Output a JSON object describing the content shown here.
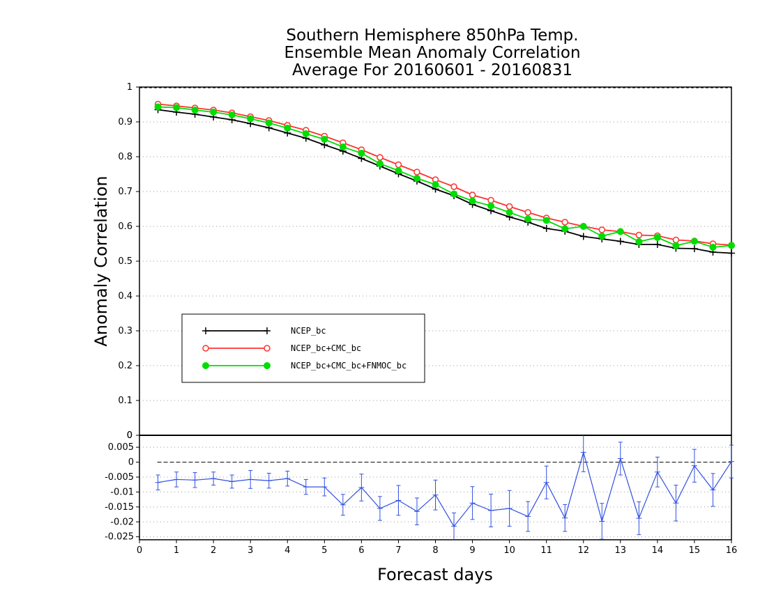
{
  "chart_data": [
    {
      "type": "line",
      "title_lines": [
        "Southern Hemisphere 850hPa Temp.",
        "Ensemble Mean Anomaly Correlation",
        "Average For 20160601 - 20160831"
      ],
      "xlabel": "Forecast days",
      "ylabel": "Anomaly Correlation",
      "xlim": [
        0,
        16
      ],
      "ylim": [
        0,
        1
      ],
      "xticks": [
        "0",
        "1",
        "2",
        "3",
        "4",
        "5",
        "6",
        "7",
        "8",
        "9",
        "10",
        "11",
        "12",
        "13",
        "14",
        "15",
        "16"
      ],
      "yticks": [
        "0",
        "0.1",
        "0.2",
        "0.3",
        "0.4",
        "0.5",
        "0.6",
        "0.7",
        "0.8",
        "0.9",
        "1"
      ],
      "grid": true,
      "legend_placement": "lower-left",
      "x": [
        0.5,
        1,
        1.5,
        2,
        2.5,
        3,
        3.5,
        4,
        4.5,
        5,
        5.5,
        6,
        6.5,
        7,
        7.5,
        8,
        8.5,
        9,
        9.5,
        10,
        10.5,
        11,
        11.5,
        12,
        12.5,
        13,
        13.5,
        14,
        14.5,
        15,
        15.5,
        16
      ],
      "series": [
        {
          "name": "NCEP_bc",
          "color": "#000000",
          "marker": "plus",
          "values": [
            0.935,
            0.928,
            0.922,
            0.914,
            0.906,
            0.895,
            0.883,
            0.868,
            0.853,
            0.834,
            0.816,
            0.795,
            0.773,
            0.751,
            0.73,
            0.707,
            0.688,
            0.663,
            0.645,
            0.627,
            0.612,
            0.594,
            0.586,
            0.571,
            0.564,
            0.557,
            0.548,
            0.548,
            0.537,
            0.536,
            0.526,
            0.523
          ]
        },
        {
          "name": "NCEP_bc+CMC_bc",
          "color": "#ff3030",
          "marker": "open-circle",
          "values": [
            0.951,
            0.946,
            0.94,
            0.934,
            0.926,
            0.915,
            0.904,
            0.89,
            0.876,
            0.859,
            0.84,
            0.82,
            0.798,
            0.777,
            0.756,
            0.734,
            0.714,
            0.69,
            0.675,
            0.657,
            0.64,
            0.624,
            0.612,
            0.6,
            0.59,
            0.585,
            0.575,
            0.573,
            0.561,
            0.558,
            0.55,
            0.546
          ]
        },
        {
          "name": "NCEP_bc+CMC_bc+FNMOC_bc",
          "color": "#00dd00",
          "marker": "filled-circle",
          "values": [
            0.943,
            0.941,
            0.934,
            0.928,
            0.92,
            0.909,
            0.897,
            0.882,
            0.866,
            0.85,
            0.828,
            0.81,
            0.78,
            0.76,
            0.738,
            0.72,
            0.693,
            0.673,
            0.659,
            0.64,
            0.621,
            0.617,
            0.593,
            0.6,
            0.572,
            0.585,
            0.556,
            0.568,
            0.545,
            0.557,
            0.54,
            0.545
          ]
        }
      ]
    },
    {
      "type": "line",
      "xlim": [
        0,
        16
      ],
      "ylim": [
        -0.026,
        0.009
      ],
      "xticks": [
        "0",
        "1",
        "2",
        "3",
        "4",
        "5",
        "6",
        "7",
        "8",
        "9",
        "10",
        "11",
        "12",
        "13",
        "14",
        "15",
        "16"
      ],
      "yticks": [
        "0.005",
        "0",
        "-0.005",
        "-0.01",
        "-0.015",
        "-0.02",
        "-0.025"
      ],
      "grid": true,
      "zero_line": true,
      "error_bars": true,
      "series": [
        {
          "name": "",
          "color": "#3050e0",
          "marker": "plus",
          "values": [
            -0.0068,
            -0.0058,
            -0.006,
            -0.0055,
            -0.0065,
            -0.0058,
            -0.0062,
            -0.0055,
            -0.0083,
            -0.0083,
            -0.0143,
            -0.0085,
            -0.0155,
            -0.0128,
            -0.0165,
            -0.011,
            -0.0215,
            -0.0137,
            -0.0162,
            -0.0155,
            -0.0182,
            -0.0068,
            -0.0187,
            0.0033,
            -0.0198,
            0.0012,
            -0.0188,
            -0.0033,
            -0.0137,
            -0.0012,
            -0.0093,
            0.0002
          ],
          "errors": [
            0.0025,
            0.0025,
            0.0025,
            0.0022,
            0.0022,
            0.003,
            0.0025,
            0.0025,
            0.0025,
            0.003,
            0.0035,
            0.0045,
            0.004,
            0.005,
            0.0045,
            0.005,
            0.0045,
            0.0055,
            0.0055,
            0.006,
            0.005,
            0.0055,
            0.0045,
            0.0065,
            0.006,
            0.0055,
            0.0055,
            0.005,
            0.006,
            0.0055,
            0.0055,
            0.0055
          ]
        }
      ]
    }
  ]
}
